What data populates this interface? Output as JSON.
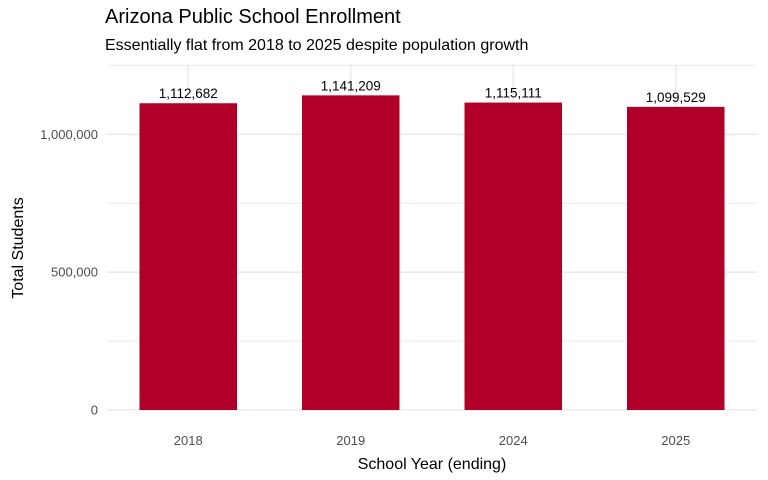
{
  "chart_data": {
    "type": "bar",
    "title": "Arizona Public School Enrollment",
    "subtitle": "Essentially flat from 2018 to 2025 despite population growth",
    "xlabel": "School Year (ending)",
    "ylabel": "Total Students",
    "categories": [
      "2018",
      "2019",
      "2024",
      "2025"
    ],
    "values": [
      1112682,
      1141209,
      1115111,
      1099529
    ],
    "data_labels": [
      "1,112,682",
      "1,141,209",
      "1,115,111",
      "1,099,529"
    ],
    "ylim": [
      0,
      1255000
    ],
    "yticks": [
      0,
      500000,
      1000000
    ],
    "ytick_labels": [
      "0",
      "500,000",
      "1,000,000"
    ],
    "grid": true,
    "legend": "none",
    "bar_color": "#B0002A",
    "grid_color": "#EBEBEB"
  }
}
